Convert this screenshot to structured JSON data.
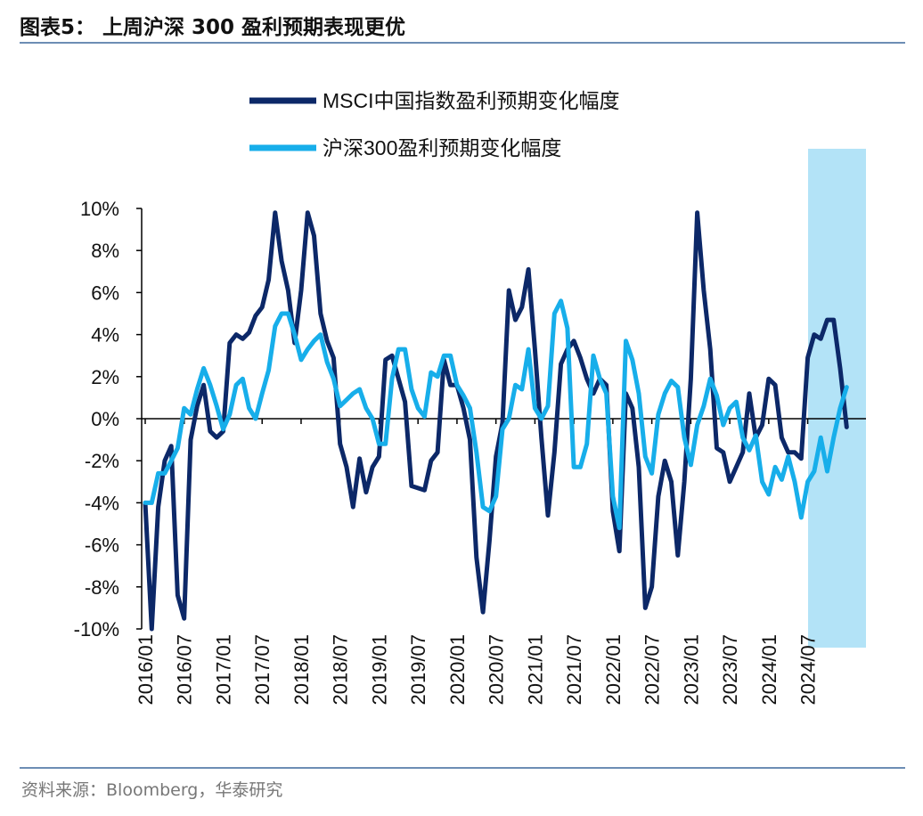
{
  "title": "图表5：  上周沪深 300 盈利预期表现更优",
  "source": "资料来源：Bloomberg，华泰研究",
  "colors": {
    "msci": "#0c2868",
    "csi300": "#17aeea",
    "highlight": "#b3e3f7",
    "rule": "#6d8db4"
  },
  "chart_data": {
    "type": "line",
    "title": "",
    "xlabel": "",
    "ylabel": "",
    "ylim": [
      -10,
      10
    ],
    "y_ticks": [
      "10%",
      "8%",
      "6%",
      "4%",
      "2%",
      "0%",
      "-2%",
      "-4%",
      "-6%",
      "-8%",
      "-10%"
    ],
    "y_tick_values": [
      10,
      8,
      6,
      4,
      2,
      0,
      -2,
      -4,
      -6,
      -8,
      -10
    ],
    "x_ticks": [
      "2016/01",
      "2016/07",
      "2017/01",
      "2017/07",
      "2018/01",
      "2018/07",
      "2019/01",
      "2019/07",
      "2020/01",
      "2020/07",
      "2021/01",
      "2021/07",
      "2022/01",
      "2022/07",
      "2023/01",
      "2023/07",
      "2024/01",
      "2024/07"
    ],
    "x_start": "2016/01",
    "x_end": "2025/01",
    "frequency": "monthly",
    "highlight_range": [
      "2024/07",
      "2025/03"
    ],
    "legend_position": "top",
    "grid": false,
    "series": [
      {
        "name": "MSCI中国指数盈利预期变化幅度",
        "color": "#0c2868",
        "values": [
          -4,
          -10,
          -4.2,
          -2,
          -1.3,
          -8.4,
          -9.5,
          -1,
          0.6,
          1.6,
          -0.6,
          -0.9,
          -0.6,
          3.6,
          4.0,
          3.8,
          4.1,
          4.9,
          5.3,
          6.6,
          9.8,
          7.5,
          6.1,
          3.6,
          6.1,
          9.8,
          8.7,
          5.0,
          3.7,
          2.9,
          -1.2,
          -2.3,
          -4.2,
          -1.9,
          -3.5,
          -2.3,
          -1.8,
          2.8,
          3.0,
          1.9,
          0.8,
          -3.2,
          -3.3,
          -3.4,
          -2.0,
          -1.6,
          2.8,
          1.6,
          1.6,
          0.5,
          -1,
          -6.6,
          -9.2,
          -5.8,
          -1.8,
          -0.2,
          6.1,
          4.7,
          5.3,
          7.1,
          3.3,
          -0.9,
          -4.6,
          -1.6,
          2.6,
          3.3,
          3.7,
          2.9,
          1.9,
          1.2,
          1.9,
          1.6,
          -4.4,
          -6.3,
          1.2,
          0.5,
          -2.3,
          -9.0,
          -8.0,
          -3.7,
          -2.0,
          -3.0,
          -6.5,
          -3.0,
          1.9,
          9.8,
          6.1,
          3.3,
          -1.4,
          -1.6,
          -3.0,
          -2.3,
          -1.6,
          1.2,
          -0.9,
          -0.3,
          1.9,
          1.6,
          -0.9,
          -1.6,
          -1.6,
          -1.9,
          2.9,
          4.0,
          3.8,
          4.7,
          4.7,
          2.4,
          -0.4
        ]
      },
      {
        "name": "沪深300盈利预期变化幅度",
        "color": "#17aeea",
        "values": [
          -4.0,
          -4.0,
          -2.6,
          -2.6,
          -2.0,
          -1.4,
          0.5,
          0.2,
          1.4,
          2.4,
          1.6,
          0.6,
          -0.5,
          0.2,
          1.6,
          1.9,
          0.5,
          0,
          1.2,
          2.3,
          4.4,
          5.0,
          5.0,
          4.0,
          2.8,
          3.3,
          3.7,
          4.0,
          2.7,
          1.9,
          0.6,
          0.9,
          1.2,
          1.4,
          0.5,
          0,
          -1.2,
          -1.2,
          1.9,
          3.3,
          3.3,
          1.4,
          0.5,
          0.1,
          2.2,
          2.0,
          3.0,
          3.0,
          1.6,
          1.1,
          0.5,
          -1.6,
          -4.2,
          -4.4,
          -3.7,
          -0.5,
          0,
          1.6,
          1.4,
          3.3,
          0.5,
          0,
          0.6,
          5.0,
          5.6,
          4.3,
          -2.3,
          -2.3,
          -1.2,
          3.0,
          1.9,
          1.2,
          -3.7,
          -5.2,
          3.7,
          2.8,
          1.2,
          -1.8,
          -2.6,
          0.2,
          1.2,
          1.8,
          1.5,
          -0.9,
          -2.2,
          -0.3,
          0.6,
          1.9,
          1.1,
          -0.3,
          0.5,
          0.8,
          -0.9,
          -1.5,
          -0.8,
          -3.0,
          -3.6,
          -2.3,
          -2.9,
          -1.8,
          -3.0,
          -4.7,
          -3.0,
          -2.5,
          -0.9,
          -2.5,
          -0.9,
          0.5,
          1.5
        ]
      }
    ]
  }
}
